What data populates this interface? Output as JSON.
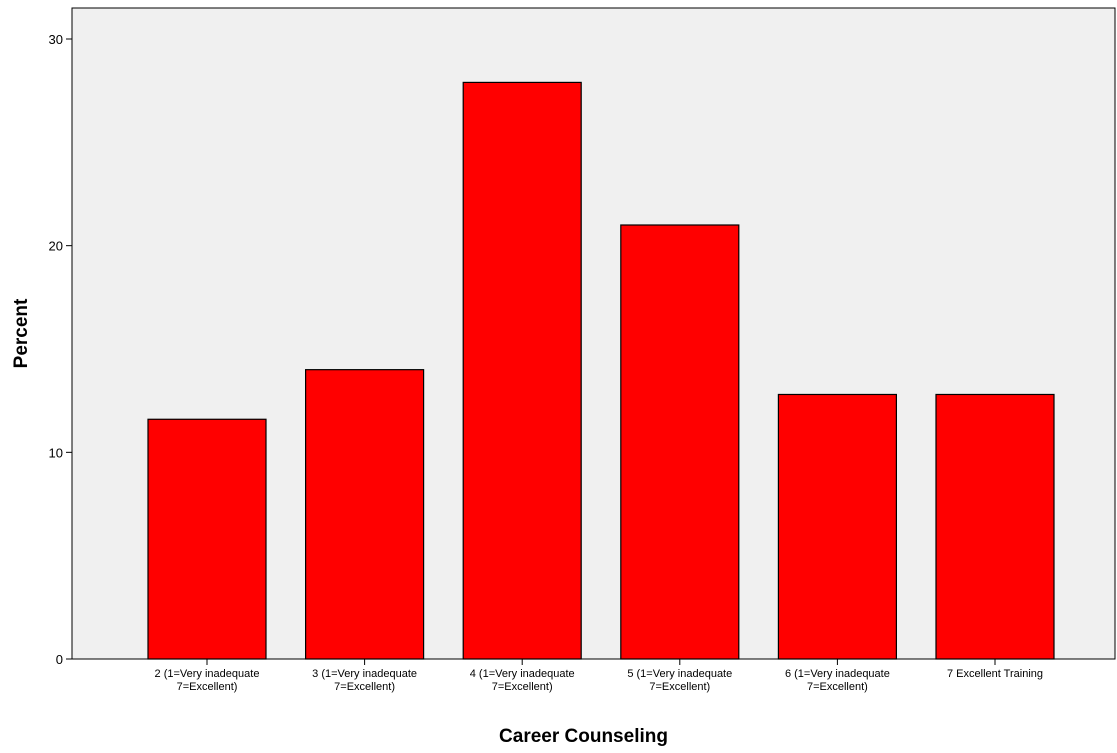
{
  "chart_data": {
    "type": "bar",
    "title": "",
    "xlabel": "Career Counseling",
    "ylabel": "Percent",
    "categories": [
      [
        "2 (1=Very inadequate",
        "7=Excellent)"
      ],
      [
        "3 (1=Very inadequate",
        "7=Excellent)"
      ],
      [
        "4 (1=Very inadequate",
        "7=Excellent)"
      ],
      [
        "5 (1=Very inadequate",
        "7=Excellent)"
      ],
      [
        "6 (1=Very inadequate",
        "7=Excellent)"
      ],
      [
        "7 Excellent Training"
      ]
    ],
    "values": [
      11.6,
      14.0,
      27.9,
      21.0,
      12.8,
      12.8
    ],
    "ylim": [
      0,
      31.5
    ],
    "yticks": [
      "0",
      "10",
      "20",
      "30"
    ],
    "grid": false,
    "colors": {
      "bar": "#ff0000",
      "bar_border": "#000000",
      "plot_background": "#f0f0f0"
    }
  }
}
